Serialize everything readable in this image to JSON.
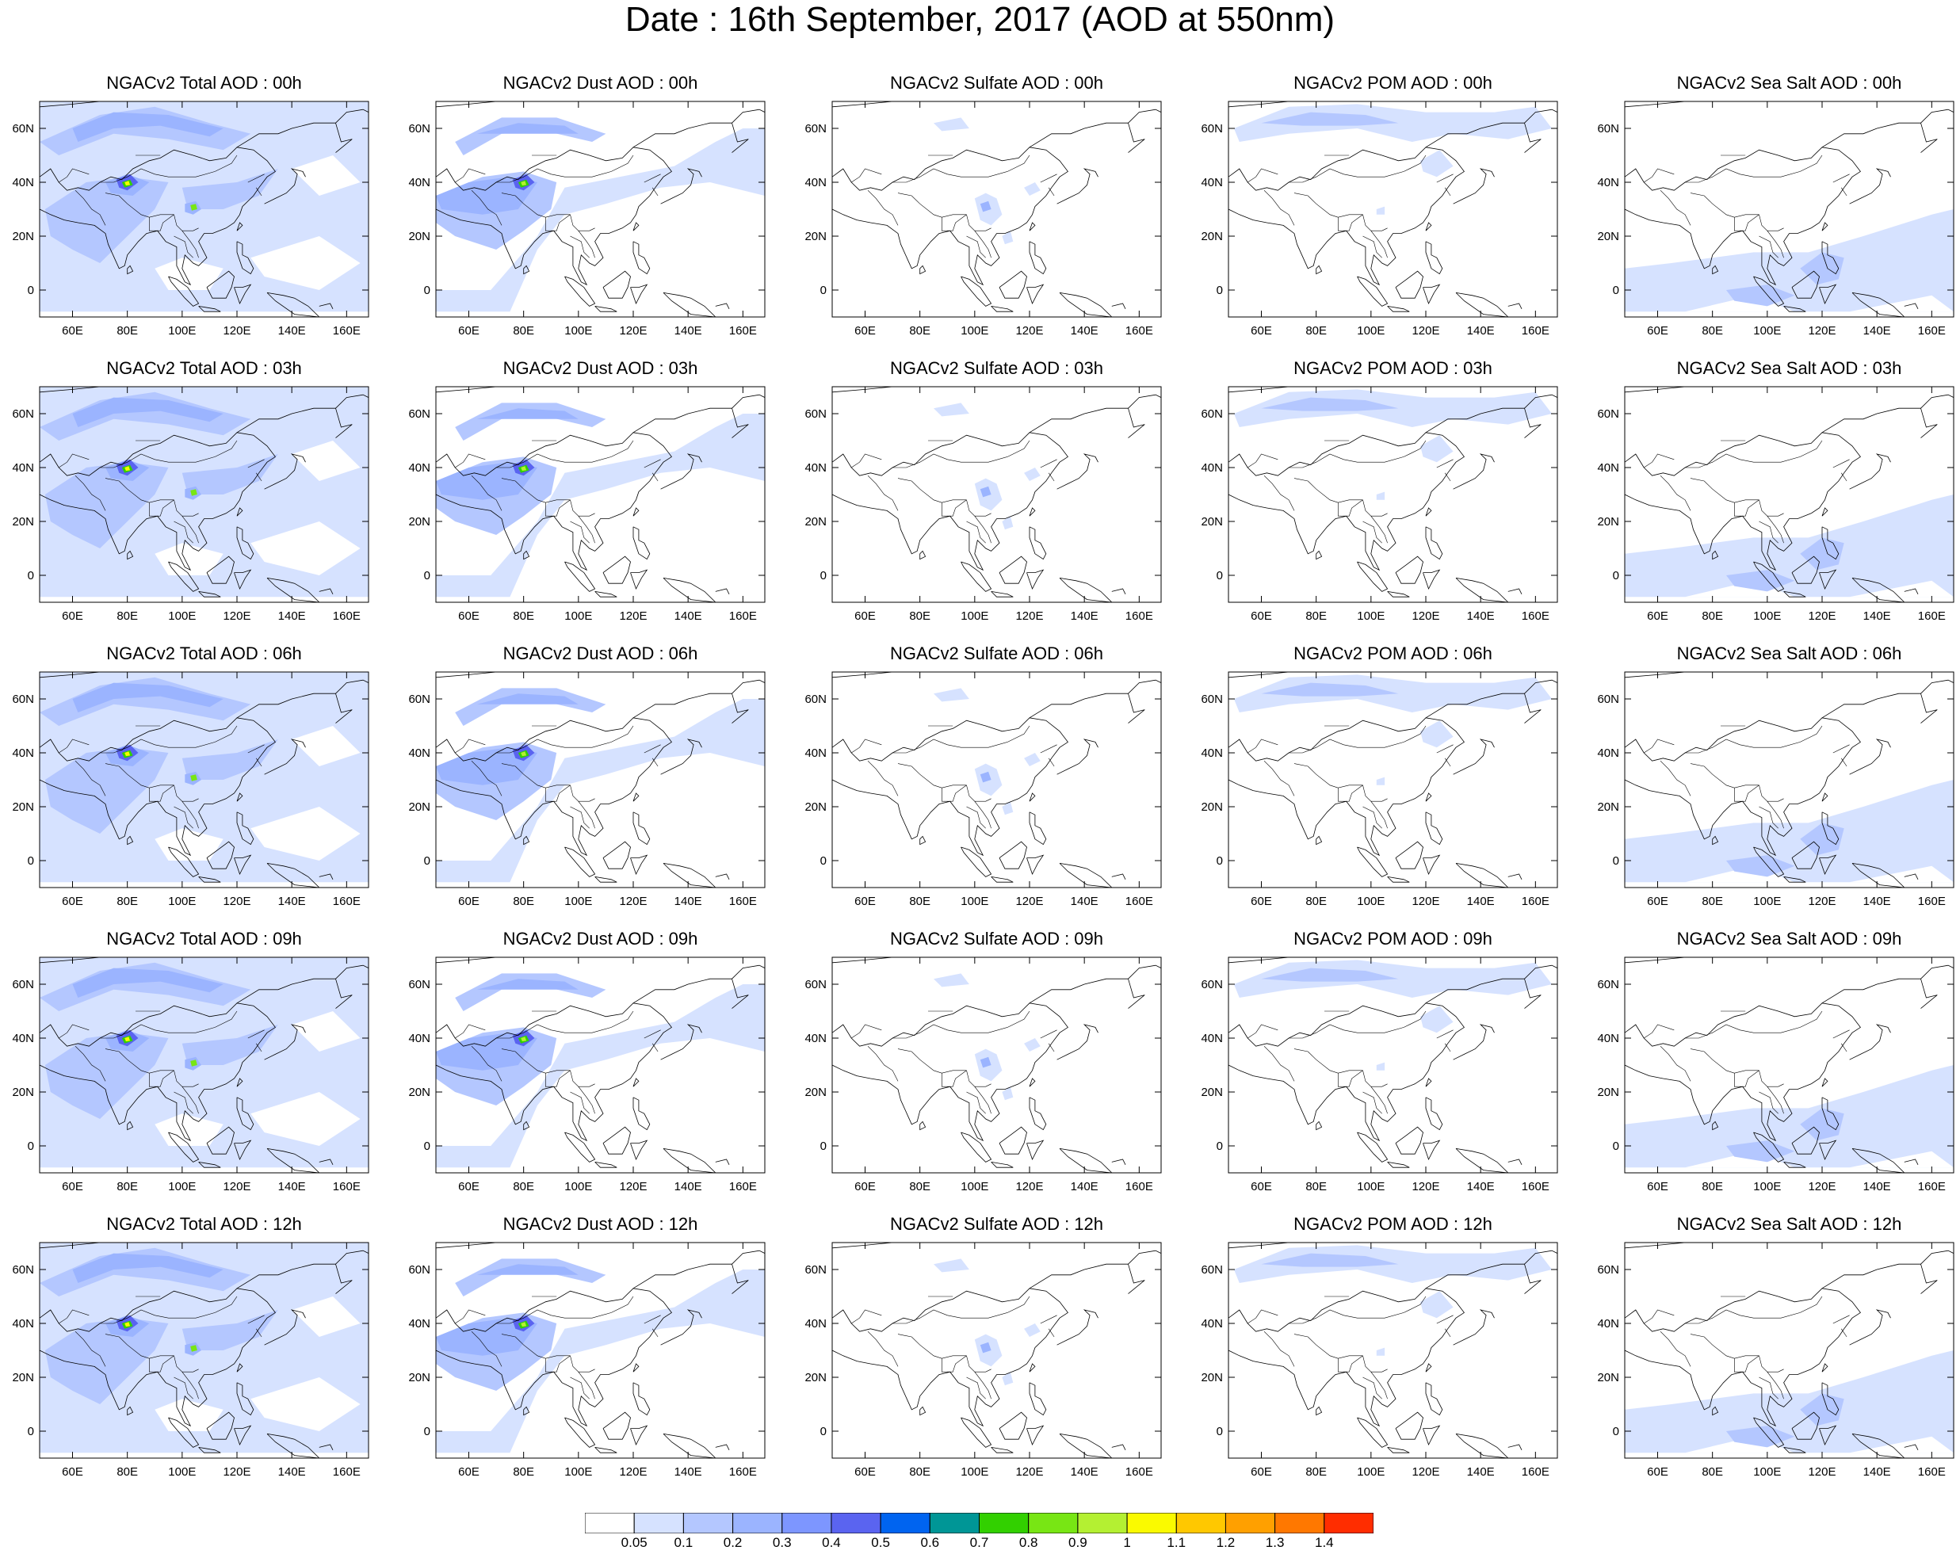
{
  "title": "Date : 16th September, 2017 (AOD at 550nm)",
  "x_tick_labels": [
    "60E",
    "80E",
    "100E",
    "120E",
    "140E",
    "160E"
  ],
  "y_tick_labels": [
    "60N",
    "40N",
    "20N",
    "0"
  ],
  "rows": [
    "00h",
    "03h",
    "06h",
    "09h",
    "12h"
  ],
  "columns": [
    "Total",
    "Dust",
    "Sulfate",
    "POM",
    "Sea Salt"
  ],
  "panel_titles": [
    [
      "NGACv2 Total AOD : 00h",
      "NGACv2 Dust AOD : 00h",
      "NGACv2 Sulfate AOD : 00h",
      "NGACv2 POM AOD : 00h",
      "NGACv2 Sea Salt AOD : 00h"
    ],
    [
      "NGACv2 Total AOD : 03h",
      "NGACv2 Dust AOD : 03h",
      "NGACv2 Sulfate AOD : 03h",
      "NGACv2 POM AOD : 03h",
      "NGACv2 Sea Salt AOD : 03h"
    ],
    [
      "NGACv2 Total AOD : 06h",
      "NGACv2 Dust AOD : 06h",
      "NGACv2 Sulfate AOD : 06h",
      "NGACv2 POM AOD : 06h",
      "NGACv2 Sea Salt AOD : 06h"
    ],
    [
      "NGACv2 Total AOD : 09h",
      "NGACv2 Dust AOD : 09h",
      "NGACv2 Sulfate AOD : 09h",
      "NGACv2 POM AOD : 09h",
      "NGACv2 Sea Salt  AOD : 09h"
    ],
    [
      "NGACv2 Total AOD  : 12h",
      "NGACv2 Dust AOD : 12h",
      "NGACv2 Sulfate AOD : 12h",
      "NGACv2 POM  AOD : 12h",
      "NGACv2 Sea Salt  AOD : 12h"
    ]
  ],
  "colorbar": {
    "labels": [
      "0.05",
      "0.1",
      "0.2",
      "0.3",
      "0.4",
      "0.5",
      "0.6",
      "0.7",
      "0.8",
      "0.9",
      "1",
      "1.1",
      "1.2",
      "1.3",
      "1.4"
    ],
    "colors": [
      "#ffffff",
      "#d6e2ff",
      "#b4c7ff",
      "#9bb4ff",
      "#7d96ff",
      "#5a64f0",
      "#0064f0",
      "#009696",
      "#32d000",
      "#78e614",
      "#b4f032",
      "#fafa00",
      "#ffc800",
      "#ffa000",
      "#ff7800",
      "#ff2d00"
    ]
  },
  "map": {
    "lon_range": [
      48,
      168
    ],
    "lat_range": [
      -10,
      70
    ],
    "type": "filled contour map of aerosol optical depth"
  }
}
